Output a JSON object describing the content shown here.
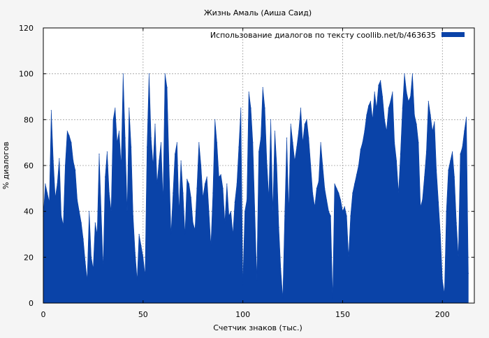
{
  "chart_data": {
    "type": "area",
    "title": "Жизнь Амаль (Аиша Саид)",
    "xlabel": "Счетчик знаков (тыс.)",
    "ylabel": "% диалогов",
    "xlim": [
      0,
      216
    ],
    "ylim": [
      0,
      120
    ],
    "xticks": [
      0,
      50,
      100,
      150,
      200
    ],
    "yticks": [
      0,
      20,
      40,
      60,
      80,
      100,
      120
    ],
    "grid": true,
    "legend_position": "top-right",
    "series": [
      {
        "name": "Использование диалогов по тексту  coollib.net/b/463635",
        "color": "#0a43a8",
        "x": [
          0,
          1,
          2,
          3,
          4,
          5,
          6,
          7,
          8,
          9,
          10,
          11,
          12,
          13,
          14,
          15,
          16,
          17,
          18,
          19,
          20,
          21,
          22,
          23,
          24,
          25,
          26,
          27,
          28,
          29,
          30,
          31,
          32,
          33,
          34,
          35,
          36,
          37,
          38,
          39,
          40,
          41,
          42,
          43,
          44,
          45,
          46,
          47,
          48,
          49,
          50,
          51,
          52,
          53,
          54,
          55,
          56,
          57,
          58,
          59,
          60,
          61,
          62,
          63,
          64,
          65,
          66,
          67,
          68,
          69,
          70,
          71,
          72,
          73,
          74,
          75,
          76,
          77,
          78,
          79,
          80,
          81,
          82,
          83,
          84,
          85,
          86,
          87,
          88,
          89,
          90,
          91,
          92,
          93,
          94,
          95,
          96,
          97,
          98,
          99,
          100,
          101,
          102,
          103,
          104,
          105,
          106,
          107,
          108,
          109,
          110,
          111,
          112,
          113,
          114,
          115,
          116,
          117,
          118,
          119,
          120,
          121,
          122,
          123,
          124,
          125,
          126,
          127,
          128,
          129,
          130,
          131,
          132,
          133,
          134,
          135,
          136,
          137,
          138,
          139,
          140,
          141,
          142,
          143,
          144,
          145,
          146,
          147,
          148,
          149,
          150,
          151,
          152,
          153,
          154,
          155,
          156,
          157,
          158,
          159,
          160,
          161,
          162,
          163,
          164,
          165,
          166,
          167,
          168,
          169,
          170,
          171,
          172,
          173,
          174,
          175,
          176,
          177,
          178,
          179,
          180,
          181,
          182,
          183,
          184,
          185,
          186,
          187,
          188,
          189,
          190,
          191,
          192,
          193,
          194,
          195,
          196,
          197,
          198,
          199,
          200,
          201,
          202,
          203,
          204,
          205,
          206,
          207,
          208,
          209,
          210,
          211,
          212,
          213
        ],
        "values": [
          38,
          52,
          48,
          44,
          84,
          62,
          46,
          52,
          63,
          38,
          34,
          60,
          75,
          73,
          70,
          62,
          58,
          45,
          40,
          35,
          28,
          18,
          10,
          40,
          20,
          15,
          35,
          30,
          65,
          40,
          15,
          55,
          66,
          48,
          40,
          80,
          85,
          70,
          75,
          60,
          100,
          72,
          40,
          85,
          68,
          38,
          22,
          10,
          30,
          25,
          20,
          12,
          68,
          100,
          72,
          60,
          78,
          52,
          62,
          70,
          45,
          100,
          94,
          60,
          30,
          48,
          65,
          70,
          40,
          62,
          48,
          30,
          54,
          52,
          46,
          35,
          32,
          50,
          70,
          60,
          46,
          52,
          55,
          40,
          25,
          48,
          80,
          70,
          55,
          56,
          50,
          35,
          52,
          38,
          40,
          30,
          44,
          52,
          68,
          85,
          8,
          40,
          45,
          92,
          85,
          70,
          40,
          10,
          66,
          72,
          94,
          85,
          62,
          46,
          80,
          40,
          75,
          60,
          33,
          15,
          2,
          38,
          72,
          40,
          78,
          70,
          62,
          68,
          75,
          85,
          70,
          78,
          80,
          72,
          60,
          48,
          42,
          50,
          53,
          70,
          60,
          50,
          45,
          40,
          38,
          2,
          52,
          50,
          48,
          45,
          40,
          42,
          38,
          20,
          38,
          48,
          52,
          56,
          60,
          67,
          70,
          75,
          82,
          86,
          88,
          80,
          92,
          85,
          95,
          97,
          90,
          80,
          75,
          85,
          88,
          92,
          70,
          62,
          48,
          65,
          85,
          100,
          92,
          88,
          90,
          100,
          82,
          78,
          70,
          42,
          45,
          55,
          66,
          88,
          82,
          75,
          79,
          58,
          44,
          30,
          10,
          4,
          40,
          58,
          62,
          66,
          55,
          35,
          20,
          65,
          68,
          75,
          81,
          13
        ]
      }
    ]
  }
}
